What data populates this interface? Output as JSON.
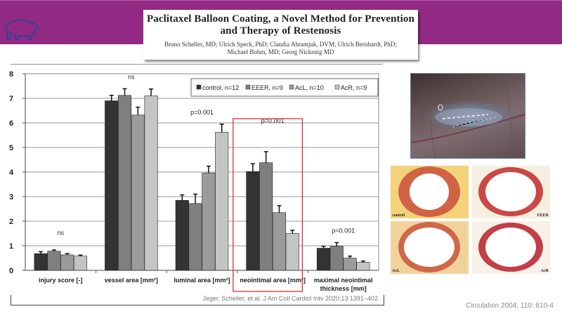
{
  "header": {
    "title": "Paclitaxel Balloon Coating, a Novel Method for Prevention and Therapy of Restenosis",
    "title_line1": "Paclitaxel Balloon Coating, a Novel Method for Prevention",
    "title_line2": "and Therapy of Restenosis",
    "authors_line1": "Bruno Scheller, MD; Ulrich Speck, PhD; Claudia Abramjuk, DVM; Ulrich Bernhardt, PhD;",
    "authors_line2": "Michael Bohm, MD; Georg Nickenig MD",
    "icon": "pig-icon",
    "banner_color": "#922a84"
  },
  "chart_data": {
    "type": "bar",
    "title": "",
    "xlabel": "",
    "ylabel": "",
    "ylim": [
      0,
      8
    ],
    "yticks": [
      "0",
      "1",
      "2",
      "3",
      "4",
      "5",
      "6",
      "7",
      "8"
    ],
    "grid": true,
    "legend_position": "top-right",
    "categories": [
      "injury score [-]",
      "vessel area [mm²]",
      "luminal area [mm²]",
      "neointimal area [mm²]",
      "maximal neointimal thickness [mm]"
    ],
    "category_labels_wrapped": [
      [
        "injury score [-]"
      ],
      [
        "vessel area [mm²]"
      ],
      [
        "luminal area [mm²]"
      ],
      [
        "neointimal area [mm²]"
      ],
      [
        "maximal neointimal",
        "thickness [mm]"
      ]
    ],
    "annotations": [
      "ns",
      "ns",
      "p=0.001",
      "p=0.001",
      "p=0.001"
    ],
    "highlighted_category": "neointimal area [mm²]",
    "highlight_color": "#d9312f",
    "series": [
      {
        "name": "control, n=12",
        "color": "#333333",
        "values": [
          0.68,
          6.9,
          2.85,
          4.02,
          0.9
        ],
        "errors": [
          0.08,
          0.22,
          0.22,
          0.32,
          0.08
        ]
      },
      {
        "name": "EEER, n=9",
        "color": "#7f7f7f",
        "values": [
          0.78,
          7.12,
          2.72,
          4.38,
          0.98
        ],
        "errors": [
          0.05,
          0.27,
          0.38,
          0.45,
          0.15
        ]
      },
      {
        "name": "AcL, n=10",
        "color": "#9b9b9b",
        "values": [
          0.63,
          6.32,
          3.96,
          2.35,
          0.5
        ],
        "errors": [
          0.05,
          0.32,
          0.28,
          0.28,
          0.08
        ]
      },
      {
        "name": "AcR, n=9",
        "color": "#c4c4c4",
        "values": [
          0.58,
          7.1,
          5.62,
          1.5,
          0.33
        ],
        "errors": [
          0.04,
          0.28,
          0.33,
          0.13,
          0.05
        ]
      }
    ]
  },
  "footer": {
    "chart_citation": "Jeger, Scheller, et al. J Am Coll Cardiol Intv 2020;13:1391–402",
    "image_citation": "Circulation 2004; 110: 810-4"
  },
  "images": {
    "photo": "balloon-catheter-photo",
    "histology_labels": [
      "control",
      "EEER",
      "AcL",
      "AcR"
    ]
  }
}
